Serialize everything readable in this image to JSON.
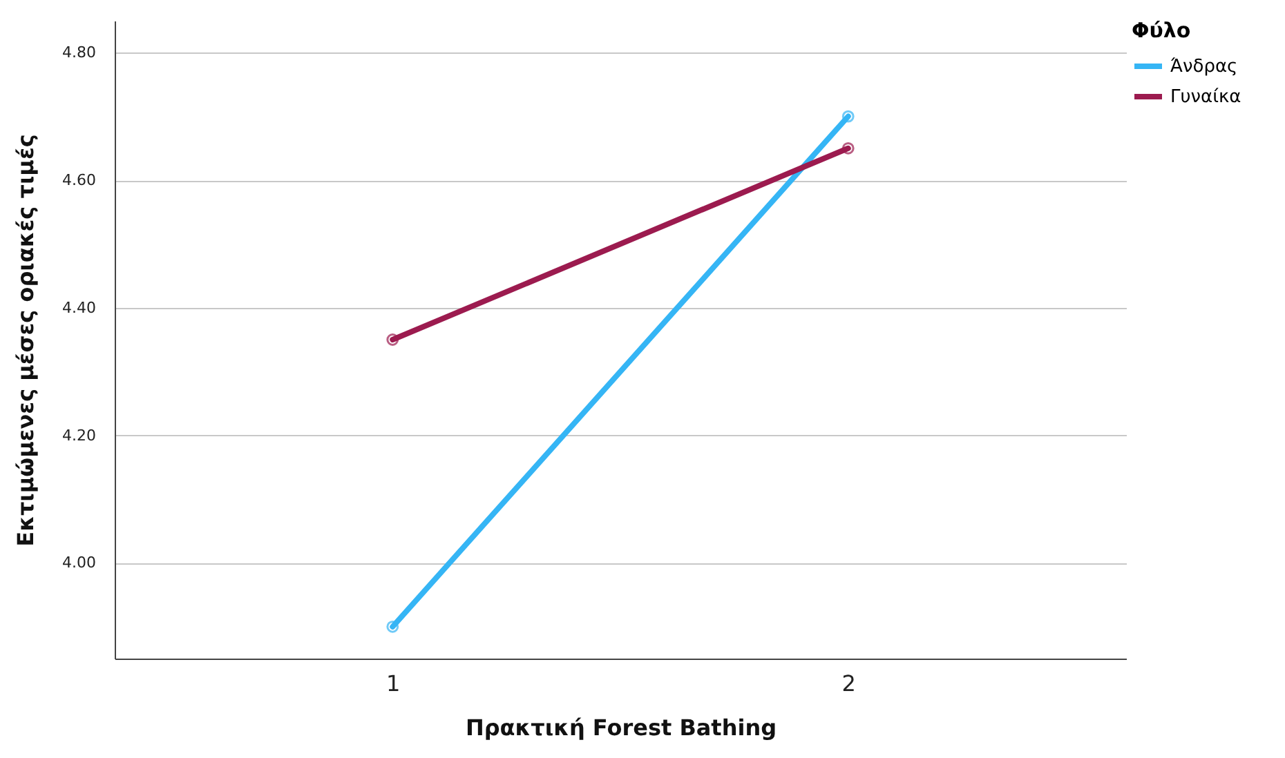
{
  "chart_data": {
    "type": "line",
    "xlabel": "Πρακτική Forest Bathing",
    "ylabel": "Εκτιμώμενες μέσες οριακές τιμές",
    "legend_title": "Φύλο",
    "categories": [
      "1",
      "2"
    ],
    "series": [
      {
        "name": "Άνδρας",
        "color": "#35b5f5",
        "values": [
          3.9,
          4.7
        ]
      },
      {
        "name": "Γυναίκα",
        "color": "#9c1b4f",
        "values": [
          4.35,
          4.65
        ]
      }
    ],
    "ylim": [
      3.85,
      4.85
    ],
    "yticks": [
      {
        "value": 4.0,
        "label": "4.00"
      },
      {
        "value": 4.2,
        "label": "4.20"
      },
      {
        "value": 4.4,
        "label": "4.40"
      },
      {
        "value": 4.6,
        "label": "4.60"
      },
      {
        "value": 4.8,
        "label": "4.80"
      }
    ],
    "grid": "y",
    "legend": "top right",
    "marker": "circle",
    "line_style": "solid"
  }
}
